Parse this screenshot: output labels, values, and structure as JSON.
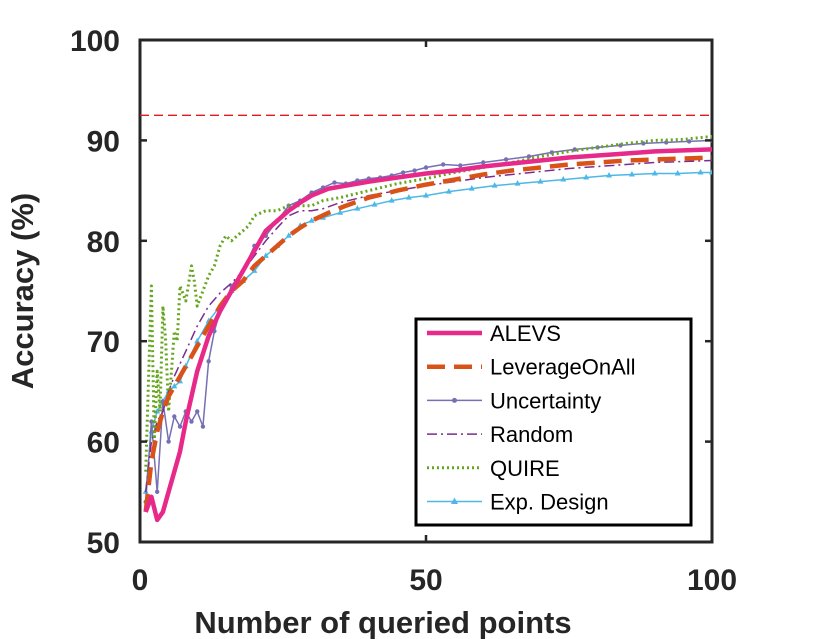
{
  "chart_data": {
    "type": "line",
    "title": "",
    "xlabel": "Number of queried points",
    "ylabel": "Accuracy (%)",
    "xlim": [
      0,
      100
    ],
    "ylim": [
      50,
      100
    ],
    "xticks": [
      0,
      50,
      100
    ],
    "yticks": [
      50,
      60,
      70,
      80,
      90,
      100
    ],
    "xtick_labels": [
      "0",
      "50",
      "100"
    ],
    "ytick_labels": [
      "50",
      "60",
      "70",
      "80",
      "90",
      "100"
    ],
    "grid": false,
    "legend_position": "bottom-right",
    "reference_line": {
      "y": 92.5,
      "color": "#e31a1c",
      "style": "dashed"
    },
    "series": [
      {
        "name": "ALEVS",
        "color": "#e7298a",
        "style": "solid",
        "width": 4.5,
        "marker": "none",
        "x": [
          1,
          2,
          3,
          4,
          5,
          6,
          7,
          8,
          10,
          12,
          14,
          16,
          18,
          20,
          22,
          24,
          26,
          28,
          30,
          33,
          36,
          40,
          45,
          50,
          55,
          60,
          65,
          70,
          75,
          80,
          85,
          90,
          95,
          100
        ],
        "y": [
          53,
          54.5,
          52.2,
          53,
          55,
          57,
          59,
          62,
          67,
          70.5,
          73,
          75,
          77,
          79,
          81,
          82,
          83,
          83.8,
          84.5,
          85.2,
          85.5,
          85.9,
          86.3,
          86.7,
          87,
          87.4,
          87.7,
          88,
          88.3,
          88.5,
          88.7,
          88.9,
          89,
          89.1
        ]
      },
      {
        "name": "LeverageOnAll",
        "color": "#d95319",
        "style": "dashed",
        "width": 4.5,
        "marker": "none",
        "x": [
          1,
          2,
          3,
          4,
          5,
          6,
          8,
          10,
          12,
          14,
          16,
          18,
          20,
          22,
          24,
          26,
          28,
          30,
          33,
          36,
          40,
          45,
          50,
          55,
          60,
          65,
          70,
          75,
          80,
          85,
          90,
          95,
          100
        ],
        "y": [
          53,
          58,
          61,
          63,
          64.5,
          65.5,
          67.5,
          69.5,
          71.5,
          73.5,
          75,
          76,
          77.5,
          78.5,
          79.5,
          80.5,
          81.3,
          82,
          82.8,
          83.5,
          84.3,
          85,
          85.6,
          86.1,
          86.6,
          87,
          87.3,
          87.6,
          87.8,
          88,
          88.1,
          88.2,
          88.3
        ]
      },
      {
        "name": "Uncertainty",
        "color": "#7570b3",
        "style": "solid",
        "width": 1.5,
        "marker": "dot",
        "x": [
          1,
          2,
          3,
          4,
          5,
          6,
          7,
          8,
          9,
          10,
          11,
          12,
          13,
          14,
          15,
          16,
          18,
          20,
          22,
          24,
          26,
          28,
          30,
          32,
          34,
          36,
          38,
          40,
          42,
          44,
          46,
          48,
          50,
          53,
          56,
          60,
          64,
          68,
          72,
          76,
          80,
          84,
          88,
          92,
          96,
          100
        ],
        "y": [
          54,
          62,
          55,
          64,
          60,
          62.5,
          61.5,
          63,
          62,
          63,
          61.5,
          68,
          71,
          73,
          74,
          75.5,
          77,
          79.5,
          80.5,
          82,
          83.5,
          84,
          84.8,
          85.3,
          85.8,
          85.7,
          86,
          86.2,
          86.3,
          86.5,
          86.8,
          87,
          87.3,
          87.6,
          87.5,
          87.8,
          88.1,
          88.4,
          88.8,
          89.1,
          89.3,
          89.5,
          89.7,
          89.8,
          89.9,
          90
        ]
      },
      {
        "name": "Random",
        "color": "#7b2d8e",
        "style": "dashdot",
        "width": 1.5,
        "marker": "none",
        "x": [
          1,
          2,
          3,
          4,
          5,
          6,
          8,
          10,
          12,
          14,
          16,
          18,
          20,
          22,
          24,
          26,
          28,
          30,
          32,
          35,
          40,
          45,
          50,
          55,
          60,
          65,
          70,
          75,
          80,
          85,
          90,
          95,
          100
        ],
        "y": [
          55,
          60,
          62,
          63,
          65,
          66.5,
          69,
          71.5,
          73.5,
          74.8,
          75.8,
          77,
          78.5,
          80,
          81.3,
          82.5,
          83,
          83,
          83.2,
          83.8,
          84.5,
          85,
          85.5,
          85.9,
          86.3,
          86.6,
          86.9,
          87.2,
          87.4,
          87.6,
          87.8,
          87.9,
          88
        ]
      },
      {
        "name": "QUIRE",
        "color": "#66a61e",
        "style": "dotted",
        "width": 3,
        "marker": "none",
        "x": [
          1,
          2,
          2.5,
          3,
          3.5,
          4,
          4.5,
          5,
          6,
          6.5,
          7,
          8,
          9,
          9.5,
          10,
          11,
          12,
          13,
          14,
          15,
          16,
          17,
          18,
          19,
          20,
          22,
          24,
          26,
          28,
          30,
          32,
          35,
          40,
          45,
          50,
          55,
          60,
          65,
          70,
          75,
          80,
          85,
          90,
          95,
          100
        ],
        "y": [
          57,
          75.5,
          60,
          67,
          63,
          73.5,
          70,
          63,
          71,
          70,
          75.5,
          74,
          77.5,
          76,
          73.5,
          75,
          76.5,
          77.5,
          79.5,
          80.5,
          80,
          80.5,
          81,
          81.5,
          82.5,
          83,
          83,
          83.5,
          83.5,
          83.5,
          84,
          84.3,
          85,
          85.7,
          86.2,
          86.8,
          87.3,
          87.8,
          88.4,
          88.9,
          89.3,
          89.7,
          90,
          90.1,
          90.4
        ]
      },
      {
        "name": "Exp. Design",
        "color": "#4db8e8",
        "style": "solid",
        "width": 1.5,
        "marker": "triangle",
        "x": [
          1,
          2,
          3,
          4,
          5,
          6,
          7,
          8,
          10,
          12,
          14,
          16,
          18,
          20,
          22,
          24,
          26,
          28,
          30,
          32,
          35,
          38,
          41,
          44,
          47,
          50,
          54,
          58,
          62,
          66,
          70,
          74,
          78,
          82,
          86,
          90,
          94,
          98,
          100
        ],
        "y": [
          55,
          61,
          63,
          64,
          65,
          65.5,
          66,
          67.5,
          70,
          72,
          73.5,
          75,
          76,
          77,
          78.5,
          79.5,
          80.5,
          81.5,
          82,
          82.3,
          82.8,
          83.2,
          83.6,
          84,
          84.3,
          84.5,
          84.9,
          85.2,
          85.5,
          85.7,
          85.9,
          86.1,
          86.3,
          86.5,
          86.6,
          86.7,
          86.7,
          86.8,
          86.8
        ]
      }
    ]
  }
}
